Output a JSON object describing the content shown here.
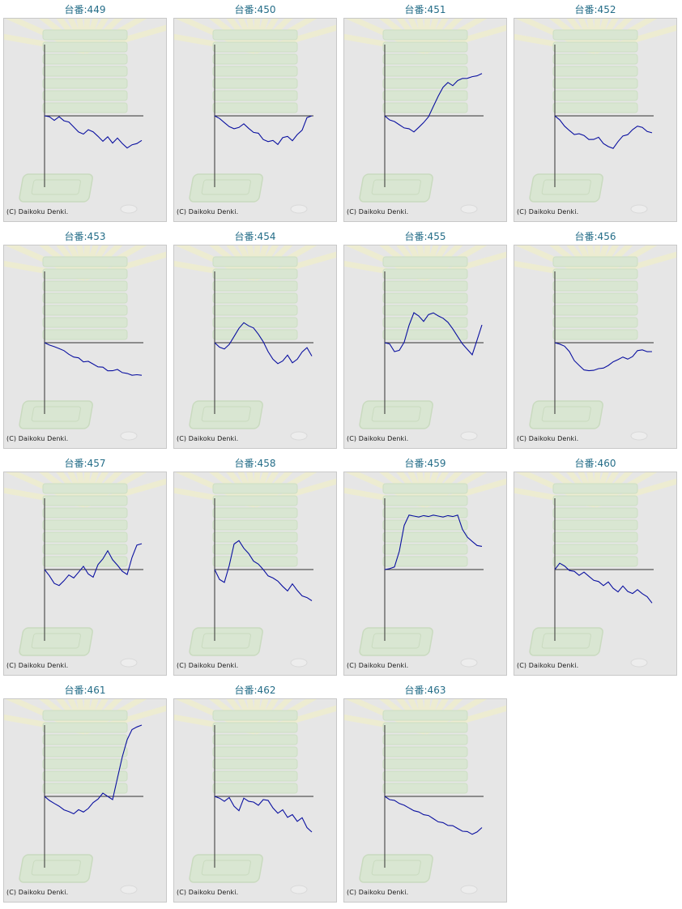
{
  "page": {
    "copyright_text": "(C) Daikoku Denki.",
    "colors": {
      "title_text": "#246d88",
      "panel_background": "#e6e6e6",
      "panel_border": "#c8c8c8",
      "graph_line": "#0a10a0",
      "axis_line": "#333333"
    }
  },
  "machines": [
    {
      "label": "台番:449",
      "trend": [
        0,
        -2,
        -8,
        -3,
        -10,
        -16,
        -25,
        -34,
        -42,
        -30,
        -38,
        -46,
        -55,
        -48,
        -60,
        -52,
        -62,
        -70,
        -66,
        -61,
        -55
      ]
    },
    {
      "label": "台番:450",
      "trend": [
        0,
        -8,
        -15,
        -22,
        -30,
        -25,
        -20,
        -28,
        -35,
        -40,
        -52,
        -60,
        -55,
        -62,
        -50,
        -45,
        -58,
        -42,
        -30,
        -5,
        0
      ]
    },
    {
      "label": "台番:451",
      "trend": [
        0,
        -8,
        -15,
        -20,
        -25,
        -30,
        -35,
        -28,
        -15,
        0,
        20,
        45,
        62,
        75,
        70,
        78,
        85,
        82,
        88,
        92,
        95
      ]
    },
    {
      "label": "台番:452",
      "trend": [
        0,
        -10,
        -22,
        -35,
        -42,
        -38,
        -45,
        -52,
        -55,
        -48,
        -60,
        -70,
        -72,
        -60,
        -45,
        -40,
        -32,
        -22,
        -28,
        -35,
        -38
      ]
    },
    {
      "label": "台番:453",
      "trend": [
        0,
        -3,
        -10,
        -12,
        -20,
        -26,
        -30,
        -35,
        -42,
        -44,
        -48,
        -52,
        -56,
        -62,
        -65,
        -60,
        -65,
        -70,
        -72,
        -74,
        -73
      ]
    },
    {
      "label": "台番:454",
      "trend": [
        0,
        -10,
        -12,
        -5,
        15,
        30,
        45,
        40,
        32,
        20,
        0,
        -20,
        -35,
        -48,
        -40,
        -30,
        -45,
        -35,
        -22,
        -10,
        -30
      ]
    },
    {
      "label": "台番:455",
      "trend": [
        0,
        -5,
        -20,
        -15,
        0,
        40,
        65,
        60,
        50,
        62,
        68,
        58,
        55,
        48,
        30,
        15,
        -5,
        -15,
        -25,
        5,
        40
      ]
    },
    {
      "label": "台番:456",
      "trend": [
        0,
        -2,
        -10,
        -20,
        -38,
        -52,
        -60,
        -65,
        -62,
        -56,
        -58,
        -50,
        -45,
        -38,
        -30,
        -38,
        -30,
        -20,
        -16,
        -18,
        -20
      ]
    },
    {
      "label": "台番:457",
      "trend": [
        0,
        -15,
        -30,
        -38,
        -25,
        -10,
        -20,
        -5,
        5,
        -10,
        -15,
        10,
        25,
        40,
        22,
        12,
        -5,
        -10,
        25,
        55,
        58
      ]
    },
    {
      "label": "台番:458",
      "trend": [
        0,
        -20,
        -30,
        10,
        55,
        65,
        50,
        35,
        20,
        10,
        0,
        -12,
        -20,
        -25,
        -40,
        -48,
        -30,
        -48,
        -58,
        -65,
        -70
      ]
    },
    {
      "label": "台番:459",
      "trend": [
        0,
        2,
        8,
        40,
        100,
        120,
        120,
        120,
        120,
        120,
        120,
        120,
        120,
        120,
        120,
        120,
        90,
        75,
        62,
        55,
        52
      ]
    },
    {
      "label": "台番:460",
      "trend": [
        0,
        12,
        8,
        0,
        -5,
        -12,
        -8,
        -15,
        -22,
        -28,
        -35,
        -30,
        -42,
        -48,
        -38,
        -48,
        -56,
        -45,
        -52,
        -62,
        -75
      ]
    },
    {
      "label": "台番:461",
      "trend": [
        0,
        -8,
        -18,
        -22,
        -28,
        -35,
        -38,
        -32,
        -35,
        -25,
        -15,
        -5,
        5,
        0,
        -5,
        40,
        90,
        125,
        150,
        158,
        160
      ]
    },
    {
      "label": "台番:462",
      "trend": [
        0,
        -5,
        -10,
        -5,
        -22,
        -30,
        -5,
        -10,
        -15,
        -20,
        -5,
        -10,
        -25,
        -40,
        -30,
        -45,
        -42,
        -55,
        -50,
        -70,
        -80
      ]
    },
    {
      "label": "台番:463",
      "trend": [
        0,
        -5,
        -10,
        -15,
        -22,
        -26,
        -30,
        -36,
        -40,
        -45,
        -50,
        -55,
        -60,
        -64,
        -68,
        -72,
        -76,
        -80,
        -84,
        -82,
        -70
      ]
    }
  ]
}
